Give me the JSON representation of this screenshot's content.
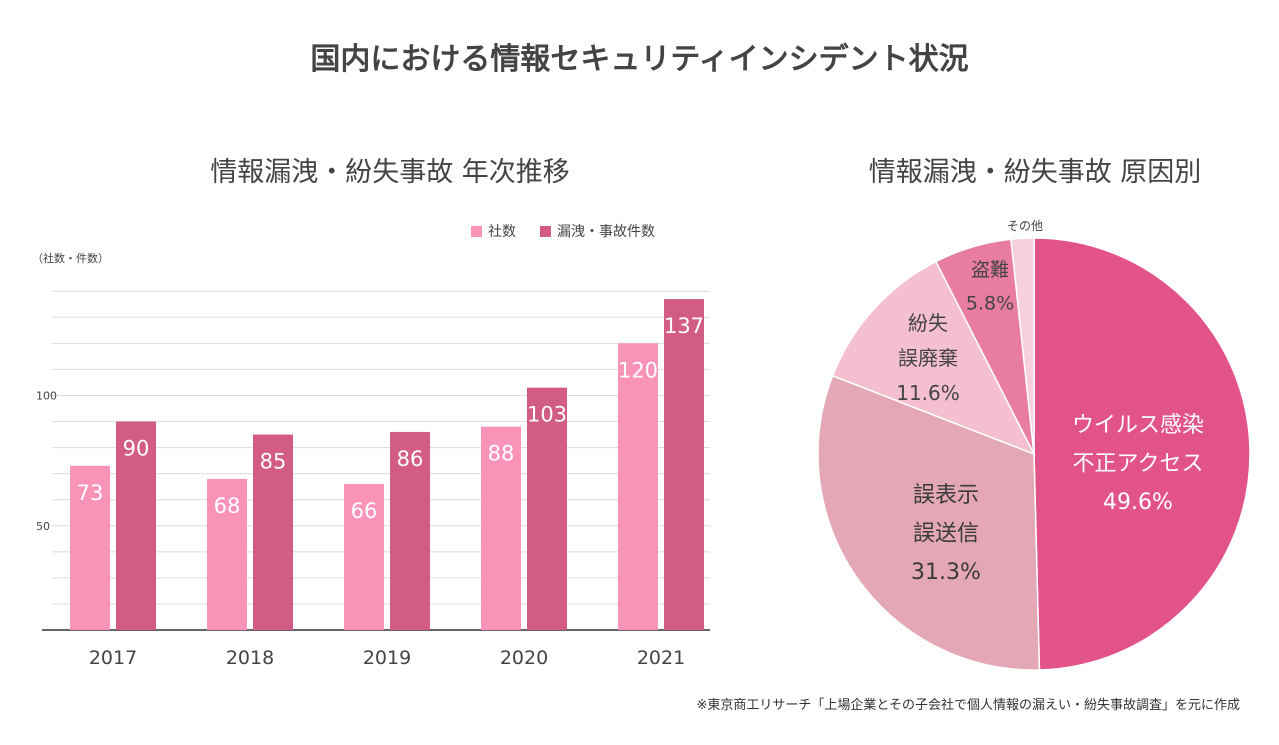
{
  "page": {
    "title": "国内における情報セキュリティインシデント状況",
    "source_note": "※東京商工リサーチ「上場企業とその子会社で個人情報の漏えい・紛失事故調査」を元に作成"
  },
  "colors": {
    "companies": "#fa93b8",
    "incidents": "#d35c87",
    "pie": [
      "#e2538a",
      "#e3a7b6",
      "#f4bfcf",
      "#e97da0",
      "#f6d0dc"
    ]
  },
  "chart_data": [
    {
      "type": "bar",
      "title": "情報漏洩・紛失事故 年次推移",
      "ylabel": "（社数・件数）",
      "categories": [
        "2017",
        "2018",
        "2019",
        "2020",
        "2021"
      ],
      "series": [
        {
          "name": "社数",
          "values": [
            73,
            68,
            66,
            88,
            120
          ]
        },
        {
          "name": "漏洩・事故件数",
          "values": [
            90,
            85,
            86,
            103,
            137
          ]
        }
      ],
      "yticks": [
        50,
        100
      ],
      "ylim": [
        10,
        150
      ],
      "grid": true,
      "legend": "top-right"
    },
    {
      "type": "pie",
      "title": "情報漏洩・紛失事故 原因別",
      "slices": [
        {
          "lines": [
            "ウイルス感染",
            "不正アクセス"
          ],
          "pct_label": "49.6%",
          "value": 49.6
        },
        {
          "lines": [
            "誤表示",
            "誤送信"
          ],
          "pct_label": "31.3%",
          "value": 31.3
        },
        {
          "lines": [
            "紛失",
            "誤廃棄"
          ],
          "pct_label": "11.6%",
          "value": 11.6
        },
        {
          "lines": [
            "盗難"
          ],
          "pct_label": "5.8%",
          "value": 5.8
        },
        {
          "lines": [
            "その他"
          ],
          "pct_label": "",
          "value": 1.7
        }
      ]
    }
  ]
}
